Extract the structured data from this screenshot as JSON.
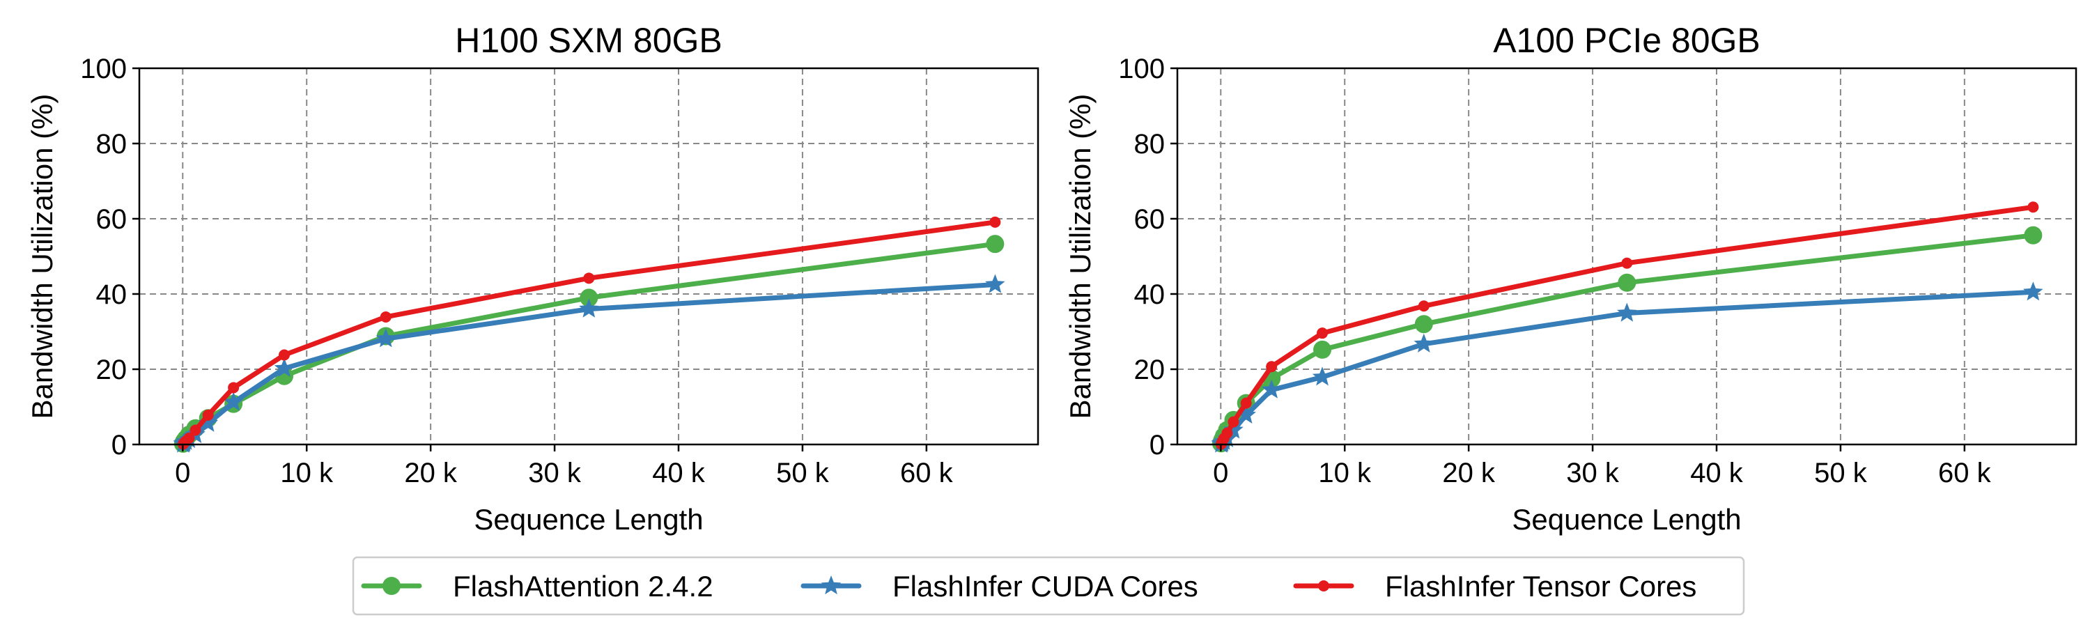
{
  "chart_data": [
    {
      "type": "line",
      "title": "H100 SXM 80GB",
      "xlabel": "Sequence Length",
      "ylabel": "Bandwidth Utilization (%)",
      "xlim": [
        -3500,
        69000
      ],
      "ylim": [
        0,
        100
      ],
      "xticks": [
        0,
        10000,
        20000,
        30000,
        40000,
        50000,
        60000
      ],
      "xtick_labels": [
        "0",
        "10 k",
        "20 k",
        "30 k",
        "40 k",
        "50 k",
        "60 k"
      ],
      "yticks": [
        0,
        20,
        40,
        60,
        80,
        100
      ],
      "ytick_labels": [
        "0",
        "20",
        "40",
        "60",
        "80",
        "100"
      ],
      "grid": true,
      "series": [
        {
          "name": "FlashAttention 2.4.2",
          "color": "#4daf4a",
          "marker": "circle",
          "x": [
            32,
            64,
            128,
            256,
            512,
            1024,
            2048,
            4096,
            8192,
            16384,
            32768,
            65536
          ],
          "y": [
            0.2,
            0.5,
            0.9,
            1.5,
            2.6,
            4.3,
            7.0,
            10.8,
            18.2,
            28.8,
            39.0,
            53.3
          ]
        },
        {
          "name": "FlashInfer CUDA Cores",
          "color": "#377eb8",
          "marker": "star",
          "x": [
            32,
            64,
            128,
            256,
            512,
            1024,
            2048,
            4096,
            8192,
            16384,
            32768,
            65536
          ],
          "y": [
            0.1,
            0.2,
            0.4,
            0.8,
            1.3,
            2.6,
            5.6,
            11.2,
            20.2,
            28.1,
            36.0,
            42.5
          ]
        },
        {
          "name": "FlashInfer Tensor Cores",
          "color": "#e41a1c",
          "marker": "dot",
          "x": [
            32,
            64,
            128,
            256,
            512,
            1024,
            2048,
            4096,
            8192,
            16384,
            32768,
            65536
          ],
          "y": [
            0.1,
            0.2,
            0.5,
            0.9,
            1.7,
            3.8,
            7.8,
            15.1,
            23.8,
            33.9,
            44.2,
            59.1
          ]
        }
      ]
    },
    {
      "type": "line",
      "title": "A100 PCIe 80GB",
      "xlabel": "Sequence Length",
      "ylabel": "Bandwidth Utilization (%)",
      "xlim": [
        -3500,
        69000
      ],
      "ylim": [
        0,
        100
      ],
      "xticks": [
        0,
        10000,
        20000,
        30000,
        40000,
        50000,
        60000
      ],
      "xtick_labels": [
        "0",
        "10 k",
        "20 k",
        "30 k",
        "40 k",
        "50 k",
        "60 k"
      ],
      "yticks": [
        0,
        20,
        40,
        60,
        80,
        100
      ],
      "ytick_labels": [
        "0",
        "20",
        "40",
        "60",
        "80",
        "100"
      ],
      "grid": true,
      "series": [
        {
          "name": "FlashAttention 2.4.2",
          "color": "#4daf4a",
          "marker": "circle",
          "x": [
            32,
            64,
            128,
            256,
            512,
            1024,
            2048,
            4096,
            8192,
            16384,
            32768,
            65536
          ],
          "y": [
            0.3,
            0.6,
            1.2,
            2.2,
            3.8,
            6.5,
            11.0,
            17.5,
            25.2,
            32.0,
            43.0,
            55.6
          ]
        },
        {
          "name": "FlashInfer CUDA Cores",
          "color": "#377eb8",
          "marker": "star",
          "x": [
            32,
            64,
            128,
            256,
            512,
            1024,
            2048,
            4096,
            8192,
            16384,
            32768,
            65536
          ],
          "y": [
            0.1,
            0.2,
            0.4,
            0.8,
            1.5,
            3.8,
            7.8,
            14.5,
            17.9,
            26.7,
            34.9,
            40.5
          ]
        },
        {
          "name": "FlashInfer Tensor Cores",
          "color": "#e41a1c",
          "marker": "dot",
          "x": [
            32,
            64,
            128,
            256,
            512,
            1024,
            2048,
            4096,
            8192,
            16384,
            32768,
            65536
          ],
          "y": [
            0.1,
            0.3,
            0.8,
            1.6,
            3.0,
            6.0,
            11.0,
            20.7,
            29.6,
            36.8,
            48.2,
            63.1
          ]
        }
      ]
    }
  ],
  "legend": {
    "placement": "bottom-center",
    "items": [
      {
        "label": "FlashAttention 2.4.2",
        "color": "#4daf4a",
        "marker": "circle"
      },
      {
        "label": "FlashInfer CUDA Cores",
        "color": "#377eb8",
        "marker": "star"
      },
      {
        "label": "FlashInfer Tensor Cores",
        "color": "#e41a1c",
        "marker": "dot"
      }
    ]
  },
  "style": {
    "grid_color": "#888888",
    "axis_color": "#000000"
  }
}
